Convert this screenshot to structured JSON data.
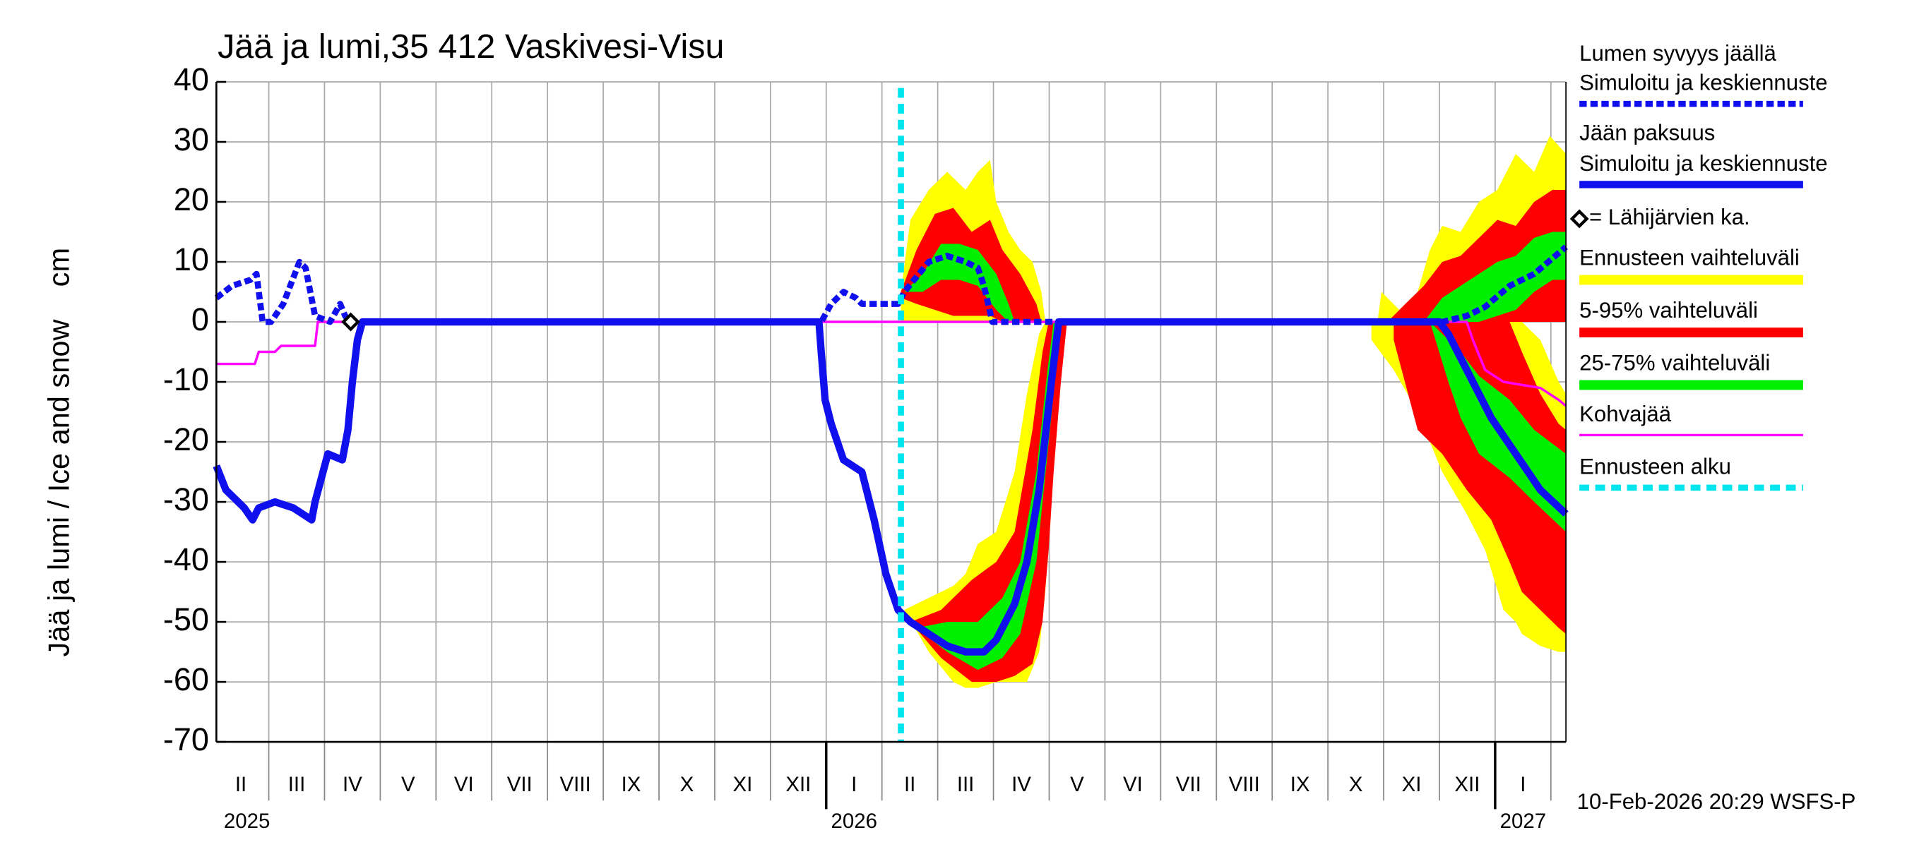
{
  "chart_data": {
    "type": "line",
    "title": "Jää ja lumi,35 412 Vaskivesi-Visu",
    "y_label": "Jää ja lumi / Ice and snow    cm",
    "footer": "10-Feb-2026 20:29 WSFS-P",
    "xlim": [
      0.06,
      24.27
    ],
    "xticks": [
      1,
      2,
      3,
      4,
      5,
      6,
      7,
      8,
      9,
      10,
      11,
      12,
      13,
      14,
      15,
      16,
      17,
      18,
      19,
      20,
      21,
      22,
      23,
      24
    ],
    "month_labels": [
      "II",
      "III",
      "IV",
      "V",
      "VI",
      "VII",
      "VIII",
      "IX",
      "X",
      "XI",
      "XII",
      "I",
      "II",
      "III",
      "IV",
      "V",
      "VI",
      "VII",
      "VIII",
      "IX",
      "X",
      "XI",
      "XII",
      "I"
    ],
    "year_ticks": [
      {
        "value": 0,
        "label": "2025"
      },
      {
        "value": 11,
        "label": "2026"
      },
      {
        "value": 23,
        "label": "2027"
      }
    ],
    "ylim": [
      -70,
      40
    ],
    "yticks": [
      40,
      30,
      20,
      10,
      0,
      -10,
      -20,
      -30,
      -40,
      -50,
      -60,
      -70
    ],
    "grid": true,
    "bands": [
      {
        "name": "Ennusteen vaihteluväli",
        "color": "#ffff00",
        "parts": [
          {
            "x": [
              12.34,
              12.51,
              12.84,
              13.17,
              13.5,
              13.72,
              13.94,
              14.05,
              14.27,
              14.48,
              14.7,
              14.86,
              14.93
            ],
            "upper": [
              5,
              17,
              22,
              25,
              22,
              25,
              27,
              20,
              15,
              12,
              10,
              5,
              0
            ],
            "lower": [
              0,
              0,
              0,
              0,
              0,
              0,
              0,
              0,
              0,
              0,
              0,
              0,
              0
            ]
          },
          {
            "x": [
              12.4,
              12.84,
              13.28,
              13.5,
              13.72,
              14.05,
              14.38,
              14.6,
              14.82,
              14.93,
              15.04,
              15.15,
              15.25,
              15.32
            ],
            "upper": [
              -48,
              -46,
              -44,
              -42,
              -37,
              -35,
              -25,
              -12,
              -2,
              0,
              0,
              0,
              0,
              0
            ],
            "lower": [
              -48,
              -55,
              -60,
              -61,
              -61,
              -60,
              -60,
              -60,
              -55,
              -45,
              -30,
              -15,
              -2,
              0
            ]
          },
          {
            "x": [
              20.89,
              20.96,
              21.28,
              21.61,
              21.83,
              22.05,
              22.38,
              22.71,
              23.04,
              23.37,
              23.7,
              23.98,
              24.27
            ],
            "upper": [
              0,
              5,
              2,
              5,
              12,
              16,
              15,
              20,
              22,
              28,
              25,
              31,
              28
            ],
            "lower": [
              0,
              0,
              0,
              0,
              0,
              0,
              0,
              0,
              0,
              0,
              0,
              0,
              0
            ]
          },
          {
            "x": [
              20.78,
              21.18,
              21.61,
              22.05,
              22.49,
              22.82,
              23.15,
              23.37,
              23.48,
              23.81,
              24.14,
              24.27
            ],
            "upper": [
              0,
              0,
              0,
              0,
              0,
              0,
              0,
              0,
              0,
              -3,
              -10,
              -12
            ],
            "lower": [
              -3,
              -8,
              -15,
              -25,
              -32,
              -38,
              -48,
              -50,
              -52,
              -54,
              -55,
              -55
            ]
          }
        ]
      },
      {
        "name": "5-95% vaihteluväli",
        "color": "#ff0000",
        "parts": [
          {
            "x": [
              12.34,
              12.62,
              12.95,
              13.28,
              13.61,
              13.94,
              14.16,
              14.48,
              14.77,
              14.86
            ],
            "upper": [
              5,
              12,
              18,
              19,
              15,
              17,
              12,
              8,
              3,
              0
            ],
            "lower": [
              4,
              3,
              2,
              1,
              1,
              1,
              0,
              0,
              0,
              0
            ]
          },
          {
            "x": [
              12.51,
              13.06,
              13.61,
              14.05,
              14.38,
              14.7,
              14.88,
              14.99,
              15.08,
              15.21,
              15.32
            ],
            "upper": [
              -50,
              -48,
              -43,
              -40,
              -35,
              -18,
              -5,
              0,
              0,
              0,
              0
            ],
            "lower": [
              -50,
              -56,
              -60,
              -60,
              -59,
              -57,
              -50,
              -38,
              -25,
              -10,
              0
            ]
          },
          {
            "x": [
              21.07,
              21.39,
              21.72,
              22.05,
              22.38,
              22.71,
              23.04,
              23.37,
              23.7,
              24.03,
              24.27
            ],
            "upper": [
              0,
              3,
              6,
              10,
              11,
              14,
              17,
              16,
              20,
              22,
              22
            ],
            "lower": [
              0,
              0,
              0,
              0,
              0,
              0,
              0,
              0,
              0,
              0,
              0
            ]
          },
          {
            "x": [
              21.18,
              21.61,
              22.05,
              22.49,
              22.93,
              23.26,
              23.48,
              23.81,
              24.14,
              24.27
            ],
            "upper": [
              0,
              0,
              0,
              0,
              0,
              0,
              -5,
              -12,
              -17,
              -18
            ],
            "lower": [
              -3,
              -18,
              -22,
              -28,
              -33,
              -40,
              -45,
              -48,
              -51,
              -52
            ]
          }
        ]
      },
      {
        "name": "25-75% vaihteluväli",
        "color": "#00ee00",
        "parts": [
          {
            "x": [
              12.4,
              12.73,
              13.06,
              13.39,
              13.72,
              14.05,
              14.27,
              14.38
            ],
            "upper": [
              5,
              8,
              13,
              13,
              12,
              8,
              3,
              0
            ],
            "lower": [
              5,
              5,
              7,
              7,
              6,
              2,
              0,
              0
            ]
          },
          {
            "x": [
              12.62,
              13.17,
              13.72,
              14.16,
              14.48,
              14.77,
              14.97,
              15.08,
              15.17,
              15.21
            ],
            "upper": [
              -51,
              -50,
              -50,
              -46,
              -40,
              -25,
              -8,
              0,
              0,
              0
            ],
            "lower": [
              -51,
              -55,
              -58,
              -56,
              -52,
              -40,
              -22,
              -12,
              -3,
              0
            ]
          },
          {
            "x": [
              21.72,
              22.05,
              22.38,
              22.71,
              23.04,
              23.37,
              23.7,
              24.03,
              24.27
            ],
            "upper": [
              0,
              4,
              6,
              8,
              10,
              11,
              14,
              15,
              15
            ],
            "lower": [
              0,
              0,
              0,
              0,
              1,
              2,
              5,
              7,
              7
            ]
          },
          {
            "x": [
              21.83,
              22.16,
              22.38,
              22.71,
              23.26,
              23.7,
              24.27
            ],
            "upper": [
              0,
              -3,
              -5,
              -9,
              -13,
              -18,
              -22
            ],
            "lower": [
              0,
              -10,
              -16,
              -22,
              -26,
              -30,
              -35
            ]
          }
        ]
      }
    ],
    "series": [
      {
        "name": "Lumen syvyys jäällä",
        "desc": "Simuloitu ja keskiennuste",
        "color": "#1010ee",
        "style": "dashed",
        "x": [
          0.06,
          0.34,
          0.67,
          0.78,
          0.89,
          1.04,
          1.26,
          1.55,
          1.66,
          1.83,
          2.1,
          2.28,
          2.37,
          2.45,
          10.91,
          11.09,
          11.31,
          11.53,
          11.64,
          12.29,
          12.4,
          12.84,
          13.17,
          13.5,
          13.72,
          13.83,
          13.98,
          14.16,
          22.05,
          22.49,
          22.82,
          23.26,
          23.7,
          24.27
        ],
        "values": [
          4,
          6,
          7,
          8,
          0,
          0,
          3,
          10,
          9,
          1,
          0,
          3,
          1,
          0,
          0,
          3,
          5,
          4,
          3,
          3,
          5,
          10,
          11,
          10,
          9,
          6,
          0,
          0,
          0,
          1,
          2.5,
          6,
          8,
          12.5
        ]
      },
      {
        "name": "Jään paksuus",
        "desc": "Simuloitu ja keskiennuste",
        "color": "#1010ee",
        "style": "solid",
        "x": [
          0.06,
          0.23,
          0.56,
          0.71,
          0.82,
          1.11,
          1.44,
          1.77,
          1.83,
          2.06,
          2.32,
          2.42,
          2.5,
          2.59,
          2.68,
          10.87,
          10.91,
          10.98,
          11.09,
          11.31,
          11.64,
          11.86,
          12.07,
          12.29,
          12.51,
          12.84,
          13.17,
          13.5,
          13.83,
          14.05,
          14.38,
          14.6,
          14.82,
          15.04,
          15.17,
          22.0,
          22.16,
          22.49,
          22.71,
          22.93,
          23.37,
          23.81,
          24.27
        ],
        "values": [
          -24,
          -28,
          -31,
          -33,
          -31,
          -30,
          -31,
          -33,
          -30,
          -22,
          -23,
          -18,
          -10,
          -3,
          0,
          0,
          -5,
          -13,
          -17,
          -23,
          -25,
          -33,
          -42,
          -48,
          -50,
          -52,
          -54,
          -55,
          -55,
          -53,
          -47,
          -40,
          -28,
          -10,
          0,
          0,
          -2,
          -8,
          -12,
          -16,
          -22,
          -28,
          -32
        ]
      },
      {
        "name": "Kohvajää",
        "color": "#ff00ff",
        "style": "thin",
        "x": [
          0.06,
          0.75,
          0.82,
          1.11,
          1.22,
          1.83,
          1.88,
          22.49,
          22.6,
          22.82,
          23.15,
          23.81,
          24.14,
          24.27
        ],
        "values": [
          -7,
          -7,
          -5,
          -5,
          -4,
          -4,
          0,
          0,
          -3,
          -8,
          -10,
          -11,
          -13,
          -14
        ]
      }
    ],
    "reference": {
      "name": "= Lähijärvien ka.",
      "x": 2.47,
      "value": 0
    },
    "forecast_start": {
      "name": "Ennusteen alku",
      "x": 12.34,
      "color": "#00e5ee"
    }
  }
}
